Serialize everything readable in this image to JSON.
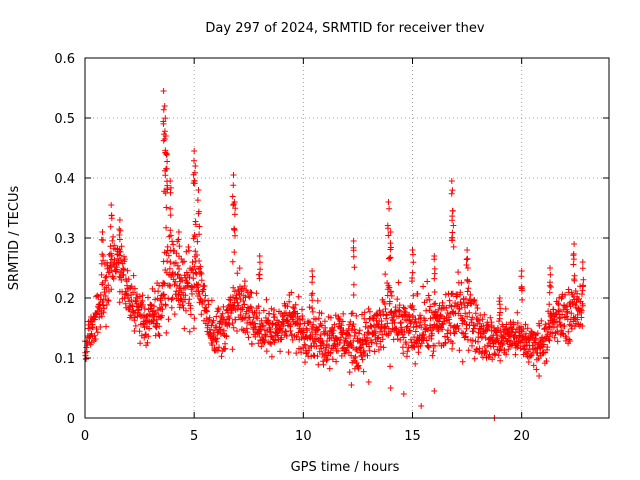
{
  "chart_data": {
    "type": "scatter",
    "title": "Day 297 of 2024, SRMTID for receiver thev",
    "xlabel": "GPS time / hours",
    "ylabel": "SRMTID / TECUs",
    "xlim": [
      0,
      24
    ],
    "ylim": [
      0,
      0.6
    ],
    "x_ticks": [
      0,
      5,
      10,
      15,
      20
    ],
    "x_tick_labels": [
      "0",
      "5",
      "10",
      "15",
      "20"
    ],
    "y_ticks": [
      0,
      0.1,
      0.2,
      0.3,
      0.4,
      0.5,
      0.6
    ],
    "y_tick_labels": [
      "0",
      "0.1",
      "0.2",
      "0.3",
      "0.4",
      "0.5",
      "0.6"
    ],
    "grid": true,
    "marker": "+",
    "series": [
      {
        "name": "SRMTID",
        "color": "#ff0000",
        "envelope_x": [
          0,
          0.5,
          1,
          1.3,
          1.7,
          2,
          2.4,
          2.8,
          3.2,
          3.5,
          3.7,
          4,
          4.3,
          4.6,
          5,
          5.3,
          5.7,
          6,
          6.3,
          6.7,
          7,
          7.5,
          8,
          8.5,
          9,
          9.5,
          10,
          10.5,
          11,
          11.5,
          12,
          12.5,
          13,
          13.5,
          14,
          14.5,
          15,
          15.5,
          16,
          16.5,
          17,
          17.5,
          18,
          18.5,
          19,
          19.5,
          20,
          20.5,
          21,
          21.5,
          22,
          22.5,
          22.8
        ],
        "envelope_mid": [
          0.12,
          0.17,
          0.22,
          0.27,
          0.24,
          0.2,
          0.18,
          0.16,
          0.17,
          0.19,
          0.24,
          0.25,
          0.22,
          0.21,
          0.24,
          0.22,
          0.16,
          0.14,
          0.15,
          0.17,
          0.19,
          0.18,
          0.15,
          0.14,
          0.16,
          0.16,
          0.15,
          0.14,
          0.13,
          0.14,
          0.13,
          0.12,
          0.14,
          0.15,
          0.17,
          0.15,
          0.14,
          0.16,
          0.15,
          0.16,
          0.17,
          0.18,
          0.15,
          0.13,
          0.13,
          0.14,
          0.13,
          0.12,
          0.13,
          0.16,
          0.17,
          0.18,
          0.19
        ],
        "envelope_spread": [
          0.04,
          0.05,
          0.06,
          0.06,
          0.06,
          0.06,
          0.05,
          0.05,
          0.05,
          0.07,
          0.1,
          0.08,
          0.06,
          0.06,
          0.08,
          0.07,
          0.05,
          0.05,
          0.05,
          0.06,
          0.06,
          0.05,
          0.05,
          0.05,
          0.05,
          0.05,
          0.05,
          0.05,
          0.05,
          0.05,
          0.05,
          0.05,
          0.05,
          0.06,
          0.07,
          0.06,
          0.06,
          0.06,
          0.06,
          0.06,
          0.07,
          0.07,
          0.05,
          0.04,
          0.04,
          0.04,
          0.04,
          0.04,
          0.04,
          0.05,
          0.05,
          0.05,
          0.04
        ],
        "peaks": [
          {
            "x": 0.8,
            "y": 0.31
          },
          {
            "x": 1.2,
            "y": 0.355
          },
          {
            "x": 1.6,
            "y": 0.33
          },
          {
            "x": 3.6,
            "y": 0.545
          },
          {
            "x": 3.65,
            "y": 0.52
          },
          {
            "x": 3.7,
            "y": 0.47
          },
          {
            "x": 3.75,
            "y": 0.44
          },
          {
            "x": 3.9,
            "y": 0.395
          },
          {
            "x": 4.3,
            "y": 0.31
          },
          {
            "x": 5.0,
            "y": 0.445
          },
          {
            "x": 5.05,
            "y": 0.42
          },
          {
            "x": 5.2,
            "y": 0.38
          },
          {
            "x": 6.8,
            "y": 0.405
          },
          {
            "x": 6.85,
            "y": 0.36
          },
          {
            "x": 8.0,
            "y": 0.27
          },
          {
            "x": 10.4,
            "y": 0.245
          },
          {
            "x": 12.3,
            "y": 0.295
          },
          {
            "x": 13.9,
            "y": 0.36
          },
          {
            "x": 14.0,
            "y": 0.31
          },
          {
            "x": 15.0,
            "y": 0.28
          },
          {
            "x": 16.0,
            "y": 0.27
          },
          {
            "x": 16.8,
            "y": 0.395
          },
          {
            "x": 16.85,
            "y": 0.345
          },
          {
            "x": 17.5,
            "y": 0.28
          },
          {
            "x": 19.0,
            "y": 0.2
          },
          {
            "x": 20.0,
            "y": 0.245
          },
          {
            "x": 21.3,
            "y": 0.25
          },
          {
            "x": 22.4,
            "y": 0.29
          },
          {
            "x": 22.8,
            "y": 0.26
          }
        ],
        "lows": [
          {
            "x": 12.2,
            "y": 0.055
          },
          {
            "x": 13.0,
            "y": 0.06
          },
          {
            "x": 14.0,
            "y": 0.05
          },
          {
            "x": 14.6,
            "y": 0.04
          },
          {
            "x": 15.4,
            "y": 0.02
          },
          {
            "x": 16.0,
            "y": 0.045
          },
          {
            "x": 18.75,
            "y": 0.0
          },
          {
            "x": 20.8,
            "y": 0.07
          }
        ]
      }
    ]
  }
}
